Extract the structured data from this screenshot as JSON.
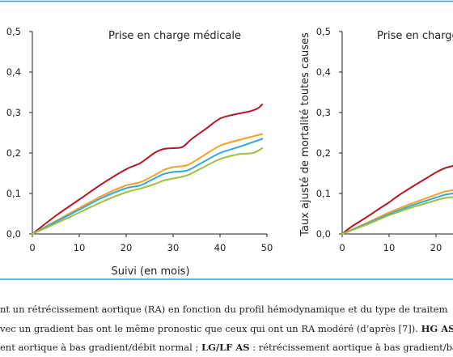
{
  "colors": {
    "frame": "#2fa3c9",
    "hg_as": "#b5162b",
    "orange": "#f4a12d",
    "blue": "#35a8e0",
    "green": "#9bc23c"
  },
  "chart_data": [
    {
      "type": "line",
      "title": "Prise en charge médicale",
      "xlabel": "Suivi (en mois)",
      "ylabel": "",
      "xlim": [
        0,
        50
      ],
      "ylim": [
        0,
        0.5
      ],
      "xticks": [
        "0",
        "10",
        "20",
        "30",
        "40",
        "50"
      ],
      "yticks": [
        "0,0",
        "0,1",
        "0,2",
        "0,3",
        "0,4",
        "0,5"
      ],
      "grid": false,
      "series": [
        {
          "color": "#b5162b",
          "x": [
            0,
            5,
            10,
            15,
            20,
            23,
            26,
            28,
            30,
            32,
            34,
            37,
            40,
            43,
            46,
            48,
            49
          ],
          "y": [
            0,
            0.045,
            0.085,
            0.125,
            0.16,
            0.175,
            0.2,
            0.21,
            0.212,
            0.215,
            0.235,
            0.26,
            0.285,
            0.295,
            0.302,
            0.31,
            0.32
          ]
        },
        {
          "color": "#f4a12d",
          "x": [
            0,
            5,
            10,
            15,
            20,
            23,
            26,
            28,
            30,
            33,
            36,
            40,
            44,
            49
          ],
          "y": [
            0,
            0.032,
            0.064,
            0.095,
            0.12,
            0.128,
            0.145,
            0.158,
            0.165,
            0.17,
            0.19,
            0.218,
            0.232,
            0.247
          ]
        },
        {
          "color": "#35a8e0",
          "x": [
            0,
            5,
            10,
            15,
            20,
            23,
            26,
            28,
            30,
            33,
            36,
            40,
            44,
            49
          ],
          "y": [
            0,
            0.03,
            0.06,
            0.09,
            0.113,
            0.12,
            0.137,
            0.148,
            0.153,
            0.157,
            0.175,
            0.2,
            0.215,
            0.235
          ]
        },
        {
          "color": "#9bc23c",
          "x": [
            0,
            5,
            10,
            15,
            20,
            23,
            26,
            28,
            30,
            33,
            36,
            40,
            44,
            47,
            49
          ],
          "y": [
            0,
            0.026,
            0.053,
            0.08,
            0.103,
            0.112,
            0.123,
            0.132,
            0.137,
            0.145,
            0.162,
            0.185,
            0.197,
            0.2,
            0.212
          ]
        }
      ]
    },
    {
      "type": "line",
      "title": "Prise en charge",
      "xlabel": "",
      "ylabel": "Taux ajusté de mortalité toutes causes",
      "xlim": [
        0,
        50
      ],
      "ylim": [
        0,
        0.5
      ],
      "xticks": [
        "0",
        "10",
        "20"
      ],
      "yticks": [
        "0,0",
        "0,1",
        "0,2",
        "0,3",
        "0,4",
        "0,5"
      ],
      "grid": false,
      "series": [
        {
          "color": "#b5162b",
          "x": [
            0,
            2,
            5,
            8,
            10,
            12,
            15,
            18,
            20,
            22,
            25
          ],
          "y": [
            0,
            0.018,
            0.04,
            0.063,
            0.078,
            0.095,
            0.117,
            0.138,
            0.152,
            0.163,
            0.172
          ]
        },
        {
          "color": "#f4a12d",
          "x": [
            0,
            5,
            10,
            15,
            20,
            22,
            25
          ],
          "y": [
            0,
            0.026,
            0.053,
            0.076,
            0.097,
            0.105,
            0.11
          ]
        },
        {
          "color": "#35a8e0",
          "x": [
            0,
            5,
            10,
            15,
            20,
            22,
            25
          ],
          "y": [
            0,
            0.024,
            0.049,
            0.071,
            0.09,
            0.097,
            0.102
          ]
        },
        {
          "color": "#9bc23c",
          "x": [
            0,
            5,
            10,
            15,
            20,
            22,
            25
          ],
          "y": [
            0,
            0.022,
            0.046,
            0.066,
            0.083,
            0.089,
            0.093
          ]
        }
      ]
    }
  ],
  "caption": {
    "line1": "nt un rétrécissement aortique (RA) en fonction du profil hémodynamique et du type de traitem",
    "line2_a": "vec un gradient bas ont le même pronostic que ceux qui ont un RA modéré (d’après [7]).",
    "line2_b": "HG AS",
    "line3_a": "ent aortique à bas gradient/débit normal ;",
    "line3_b": "LG/LF AS",
    "line3_c": " : rétrécissement aortique à bas gradient/ba"
  }
}
